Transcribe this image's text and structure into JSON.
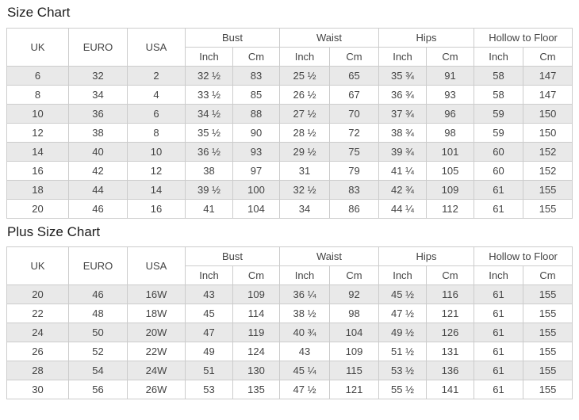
{
  "colors": {
    "border": "#cccccc",
    "stripe": "#e9e9e9",
    "header_bg": "#ffffff",
    "text": "#444444",
    "title": "#1c1c1c",
    "page_bg": "#ffffff"
  },
  "tables": [
    {
      "title": "Size Chart",
      "base_columns": [
        "UK",
        "EURO",
        "USA"
      ],
      "groups": [
        "Bust",
        "Waist",
        "Hips",
        "Hollow to Floor"
      ],
      "units": [
        "Inch",
        "Cm"
      ],
      "rows": [
        [
          "6",
          "32",
          "2",
          "32 ½",
          "83",
          "25 ½",
          "65",
          "35 ¾",
          "91",
          "58",
          "147"
        ],
        [
          "8",
          "34",
          "4",
          "33 ½",
          "85",
          "26 ½",
          "67",
          "36 ¾",
          "93",
          "58",
          "147"
        ],
        [
          "10",
          "36",
          "6",
          "34 ½",
          "88",
          "27 ½",
          "70",
          "37 ¾",
          "96",
          "59",
          "150"
        ],
        [
          "12",
          "38",
          "8",
          "35 ½",
          "90",
          "28 ½",
          "72",
          "38 ¾",
          "98",
          "59",
          "150"
        ],
        [
          "14",
          "40",
          "10",
          "36 ½",
          "93",
          "29 ½",
          "75",
          "39 ¾",
          "101",
          "60",
          "152"
        ],
        [
          "16",
          "42",
          "12",
          "38",
          "97",
          "31",
          "79",
          "41 ¼",
          "105",
          "60",
          "152"
        ],
        [
          "18",
          "44",
          "14",
          "39 ½",
          "100",
          "32 ½",
          "83",
          "42 ¾",
          "109",
          "61",
          "155"
        ],
        [
          "20",
          "46",
          "16",
          "41",
          "104",
          "34",
          "86",
          "44 ¼",
          "112",
          "61",
          "155"
        ]
      ]
    },
    {
      "title": "Plus Size Chart",
      "base_columns": [
        "UK",
        "EURO",
        "USA"
      ],
      "groups": [
        "Bust",
        "Waist",
        "Hips",
        "Hollow to Floor"
      ],
      "units": [
        "Inch",
        "Cm"
      ],
      "rows": [
        [
          "20",
          "46",
          "16W",
          "43",
          "109",
          "36 ¼",
          "92",
          "45 ½",
          "116",
          "61",
          "155"
        ],
        [
          "22",
          "48",
          "18W",
          "45",
          "114",
          "38 ½",
          "98",
          "47 ½",
          "121",
          "61",
          "155"
        ],
        [
          "24",
          "50",
          "20W",
          "47",
          "119",
          "40 ¾",
          "104",
          "49 ½",
          "126",
          "61",
          "155"
        ],
        [
          "26",
          "52",
          "22W",
          "49",
          "124",
          "43",
          "109",
          "51 ½",
          "131",
          "61",
          "155"
        ],
        [
          "28",
          "54",
          "24W",
          "51",
          "130",
          "45 ¼",
          "115",
          "53 ½",
          "136",
          "61",
          "155"
        ],
        [
          "30",
          "56",
          "26W",
          "53",
          "135",
          "47 ½",
          "121",
          "55 ½",
          "141",
          "61",
          "155"
        ]
      ]
    }
  ]
}
